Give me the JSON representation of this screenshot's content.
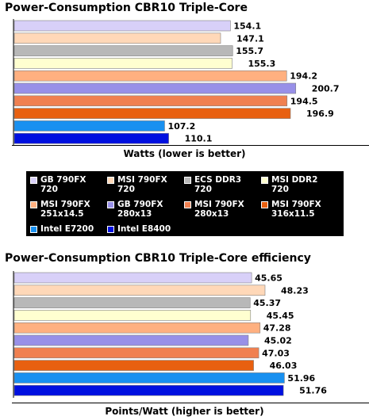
{
  "chart_data": [
    {
      "type": "bar",
      "orientation": "horizontal",
      "title": "Power-Consumption CBR10 Triple-Core",
      "xlabel": "Watts (lower is better)",
      "categories": [
        "GB 790FX 720",
        "MSI 790FX 720",
        "ECS DDR3 720",
        "MSI DDR2 720",
        "MSI 790FX 251x14.5",
        "GB 790FX 280x13",
        "MSI 790FX 280x13",
        "MSI 790FX 316x11.5",
        "Intel E7200",
        "Intel E8400"
      ],
      "values": [
        154.1,
        147.1,
        155.7,
        155.3,
        194.2,
        200.7,
        194.5,
        196.9,
        107.2,
        110.1
      ],
      "value_labels": [
        "154.1",
        "147.1",
        "155.7",
        "155.3",
        "194.2",
        "200.7",
        "194.5",
        "196.9",
        "107.2",
        "110.1"
      ],
      "xlim": [
        0,
        215
      ]
    },
    {
      "type": "bar",
      "orientation": "horizontal",
      "title": "Power-Consumption CBR10 Triple-Core efficiency",
      "xlabel": "Points/Watt (higher is better)",
      "categories": [
        "GB 790FX 720",
        "MSI 790FX 720",
        "ECS DDR3 720",
        "MSI DDR2 720",
        "MSI 790FX 251x14.5",
        "GB 790FX 280x13",
        "MSI 790FX 280x13",
        "MSI 790FX 316x11.5",
        "Intel E7200",
        "Intel E8400"
      ],
      "values": [
        45.65,
        48.23,
        45.37,
        45.45,
        47.28,
        45.02,
        47.03,
        46.03,
        51.96,
        51.76
      ],
      "value_labels": [
        "45.65",
        "48.23",
        "45.37",
        "45.45",
        "47.28",
        "45.02",
        "47.03",
        "46.03",
        "51.96",
        "51.76"
      ],
      "xlim": [
        0,
        58
      ]
    }
  ],
  "legend": {
    "entries": [
      {
        "label": "GB 790FX\n720",
        "color": "#d8d0f8"
      },
      {
        "label": "MSI 790FX\n720",
        "color": "#ffd8b8"
      },
      {
        "label": "ECS DDR3\n720",
        "color": "#b8b8b8"
      },
      {
        "label": "MSI DDR2\n720",
        "color": "#ffffd0"
      },
      {
        "label": "MSI 790FX\n251x14.5",
        "color": "#ffb080"
      },
      {
        "label": "GB 790FX\n280x13",
        "color": "#9890e8"
      },
      {
        "label": "MSI 790FX\n280x13",
        "color": "#f08050"
      },
      {
        "label": "MSI 790FX\n316x11.5",
        "color": "#e86010"
      },
      {
        "label": "Intel E7200",
        "color": "#1890f0"
      },
      {
        "label": "Intel E8400",
        "color": "#0010e0"
      }
    ]
  },
  "colors": [
    "#d8d0f8",
    "#ffd8b8",
    "#b8b8b8",
    "#ffffd0",
    "#ffb080",
    "#9890e8",
    "#f08050",
    "#e86010",
    "#1890f0",
    "#0010e0"
  ]
}
